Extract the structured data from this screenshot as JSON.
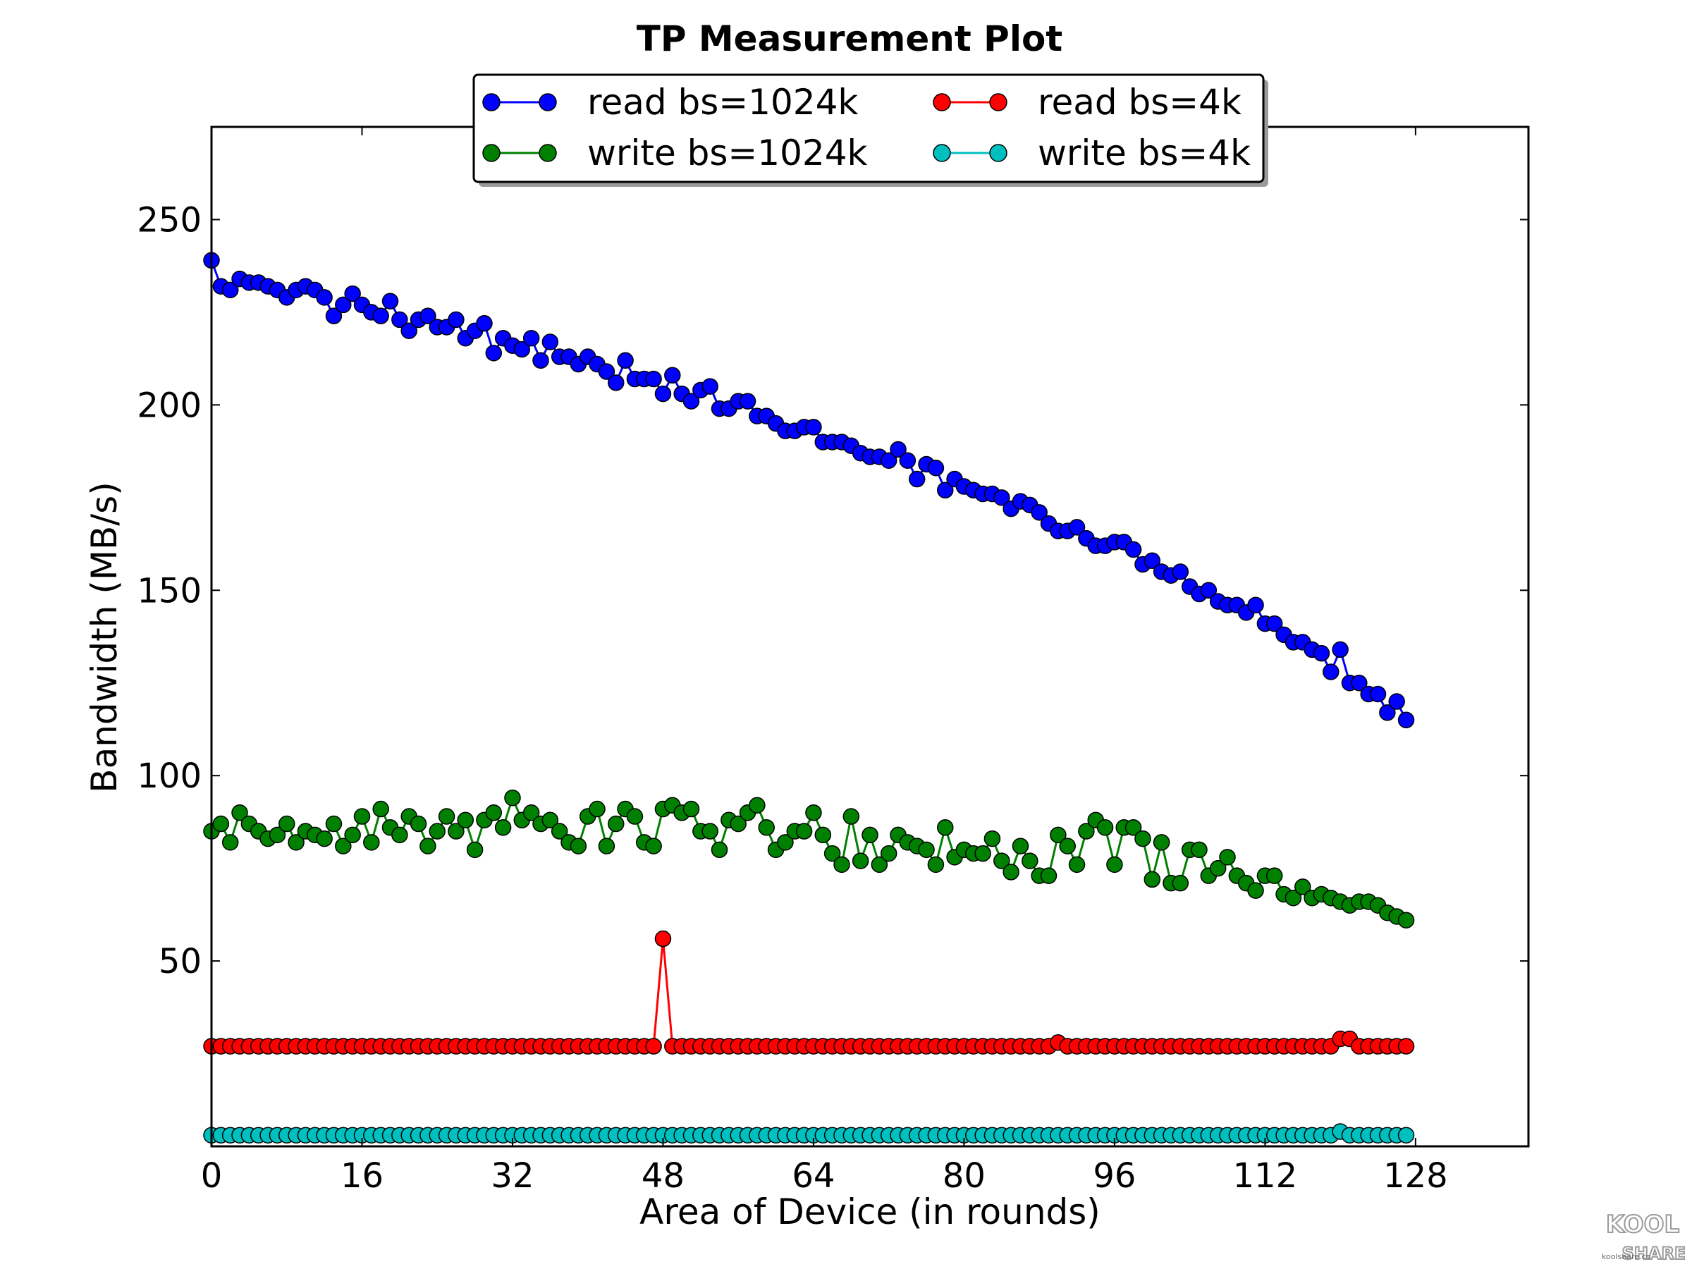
{
  "chart_data": {
    "type": "line",
    "title": "TP Measurement Plot",
    "xlabel": "Area of Device (in rounds)",
    "ylabel": "Bandwidth (MB/s)",
    "xlim": [
      0,
      140
    ],
    "ylim": [
      0,
      275
    ],
    "xticks": [
      0,
      16,
      32,
      48,
      64,
      80,
      96,
      112,
      128
    ],
    "yticks": [
      50,
      100,
      150,
      200,
      250
    ],
    "grid": false,
    "legend_position": "top-center",
    "series": [
      {
        "name": "read bs=1024k",
        "color": "#0000ff",
        "values": [
          239,
          232,
          231,
          234,
          233,
          233,
          232,
          231,
          229,
          231,
          232,
          231,
          229,
          224,
          227,
          230,
          227,
          225,
          224,
          228,
          223,
          220,
          223,
          224,
          221,
          221,
          223,
          218,
          220,
          222,
          214,
          218,
          216,
          215,
          218,
          212,
          217,
          213,
          213,
          211,
          213,
          211,
          209,
          206,
          212,
          207,
          207,
          207,
          203,
          208,
          203,
          201,
          204,
          205,
          199,
          199,
          201,
          201,
          197,
          197,
          195,
          193,
          193,
          194,
          194,
          190,
          190,
          190,
          189,
          187,
          186,
          186,
          185,
          188,
          185,
          180,
          184,
          183,
          177,
          180,
          178,
          177,
          176,
          176,
          175,
          172,
          174,
          173,
          171,
          168,
          166,
          166,
          167,
          164,
          162,
          162,
          163,
          163,
          161,
          157,
          158,
          155,
          154,
          155,
          151,
          149,
          150,
          147,
          146,
          146,
          144,
          146,
          141,
          141,
          138,
          136,
          136,
          134,
          133,
          128,
          134,
          125,
          125,
          122,
          122,
          117,
          120,
          115
        ]
      },
      {
        "name": "write bs=1024k",
        "color": "#008000",
        "values": [
          85,
          87,
          82,
          90,
          87,
          85,
          83,
          84,
          87,
          82,
          85,
          84,
          83,
          87,
          81,
          84,
          89,
          82,
          91,
          86,
          84,
          89,
          87,
          81,
          85,
          89,
          85,
          88,
          80,
          88,
          90,
          86,
          94,
          88,
          90,
          87,
          88,
          85,
          82,
          81,
          89,
          91,
          81,
          87,
          91,
          89,
          82,
          81,
          91,
          92,
          90,
          91,
          85,
          85,
          80,
          88,
          87,
          90,
          92,
          86,
          80,
          82,
          85,
          85,
          90,
          84,
          79,
          76,
          89,
          77,
          84,
          76,
          79,
          84,
          82,
          81,
          80,
          76,
          86,
          78,
          80,
          79,
          79,
          83,
          77,
          74,
          81,
          77,
          73,
          73,
          84,
          81,
          76,
          85,
          88,
          86,
          76,
          86,
          86,
          83,
          72,
          82,
          71,
          71,
          80,
          80,
          73,
          75,
          78,
          73,
          71,
          69,
          73,
          73,
          68,
          67,
          70,
          67,
          68,
          67,
          66,
          65,
          66,
          66,
          65,
          63,
          62,
          61
        ]
      },
      {
        "name": "read bs=4k",
        "color": "#ff0000",
        "values": [
          27,
          27,
          27,
          27,
          27,
          27,
          27,
          27,
          27,
          27,
          27,
          27,
          27,
          27,
          27,
          27,
          27,
          27,
          27,
          27,
          27,
          27,
          27,
          27,
          27,
          27,
          27,
          27,
          27,
          27,
          27,
          27,
          27,
          27,
          27,
          27,
          27,
          27,
          27,
          27,
          27,
          27,
          27,
          27,
          27,
          27,
          27,
          27,
          56,
          27,
          27,
          27,
          27,
          27,
          27,
          27,
          27,
          27,
          27,
          27,
          27,
          27,
          27,
          27,
          27,
          27,
          27,
          27,
          27,
          27,
          27,
          27,
          27,
          27,
          27,
          27,
          27,
          27,
          27,
          27,
          27,
          27,
          27,
          27,
          27,
          27,
          27,
          27,
          27,
          27,
          28,
          27,
          27,
          27,
          27,
          27,
          27,
          27,
          27,
          27,
          27,
          27,
          27,
          27,
          27,
          27,
          27,
          27,
          27,
          27,
          27,
          27,
          27,
          27,
          27,
          27,
          27,
          27,
          27,
          27,
          29,
          29,
          27,
          27,
          27,
          27,
          27,
          27
        ]
      },
      {
        "name": "write bs=4k",
        "color": "#00bfbf",
        "values": [
          3,
          3,
          3,
          3,
          3,
          3,
          3,
          3,
          3,
          3,
          3,
          3,
          3,
          3,
          3,
          3,
          3,
          3,
          3,
          3,
          3,
          3,
          3,
          3,
          3,
          3,
          3,
          3,
          3,
          3,
          3,
          3,
          3,
          3,
          3,
          3,
          3,
          3,
          3,
          3,
          3,
          3,
          3,
          3,
          3,
          3,
          3,
          3,
          3,
          3,
          3,
          3,
          3,
          3,
          3,
          3,
          3,
          3,
          3,
          3,
          3,
          3,
          3,
          3,
          3,
          3,
          3,
          3,
          3,
          3,
          3,
          3,
          3,
          3,
          3,
          3,
          3,
          3,
          3,
          3,
          3,
          3,
          3,
          3,
          3,
          3,
          3,
          3,
          3,
          3,
          3,
          3,
          3,
          3,
          3,
          3,
          3,
          3,
          3,
          3,
          3,
          3,
          3,
          3,
          3,
          3,
          3,
          3,
          3,
          3,
          3,
          3,
          3,
          3,
          3,
          3,
          3,
          3,
          3,
          3,
          4,
          3,
          3,
          3,
          3,
          3,
          3,
          3
        ]
      }
    ]
  },
  "watermark": {
    "logo_top": "KOOL",
    "logo_bottom": "SHARE",
    "site": "koolshare.cn"
  }
}
